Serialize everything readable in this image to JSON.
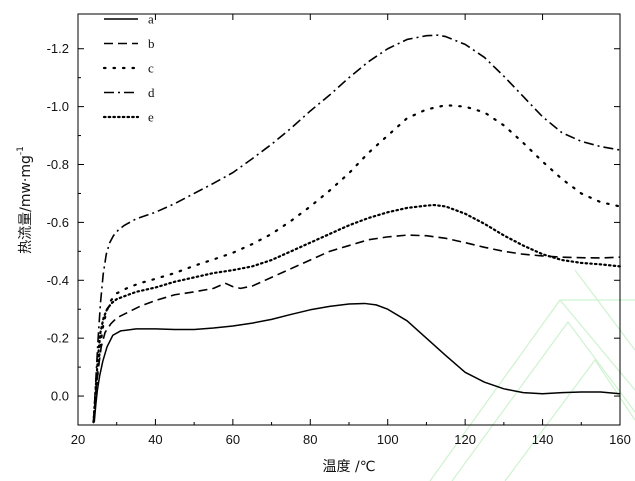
{
  "chart_data": {
    "type": "line",
    "xlabel": "温度 /℃",
    "ylabel": "热流量/mw·mg",
    "ylabel_superscript": "-1",
    "xlim": [
      20,
      160
    ],
    "ylim": [
      0.1,
      -1.32
    ],
    "x_ticks": [
      20,
      40,
      60,
      80,
      100,
      120,
      140,
      160
    ],
    "y_ticks": [
      0.0,
      -0.2,
      -0.4,
      -0.6,
      -0.8,
      -1.0,
      -1.2
    ],
    "y_tick_labels": [
      "0.0",
      "-0.2",
      "-0.4",
      "-0.6",
      "-0.8",
      "-1.0",
      "-1.2"
    ],
    "grid": false,
    "legend_position": "top-left",
    "series": [
      {
        "name": "a",
        "style": "solid",
        "x": [
          24.2,
          24.6,
          25.0,
          25.6,
          26.4,
          27.5,
          29.0,
          31,
          35,
          40,
          45,
          50,
          55,
          60,
          65,
          70,
          75,
          80,
          85,
          90,
          94,
          97,
          100,
          105,
          110,
          115,
          120,
          125,
          130,
          135,
          140,
          145,
          150,
          155,
          160
        ],
        "values": [
          0.09,
          0.03,
          -0.02,
          -0.07,
          -0.12,
          -0.17,
          -0.21,
          -0.225,
          -0.232,
          -0.232,
          -0.23,
          -0.23,
          -0.235,
          -0.242,
          -0.252,
          -0.265,
          -0.282,
          -0.298,
          -0.31,
          -0.318,
          -0.32,
          -0.315,
          -0.3,
          -0.26,
          -0.2,
          -0.14,
          -0.082,
          -0.048,
          -0.025,
          -0.012,
          -0.008,
          -0.012,
          -0.014,
          -0.014,
          -0.008
        ]
      },
      {
        "name": "b",
        "style": "dashed",
        "x": [
          24.0,
          24.3,
          24.7,
          25.3,
          26.0,
          27.0,
          28.5,
          30,
          33,
          36,
          40,
          45,
          50,
          55,
          58,
          60,
          62,
          65,
          70,
          75,
          80,
          85,
          90,
          95,
          100,
          105,
          110,
          115,
          120,
          125,
          130,
          135,
          140,
          145,
          150,
          155,
          160
        ],
        "values": [
          0.09,
          0.04,
          -0.03,
          -0.1,
          -0.17,
          -0.22,
          -0.25,
          -0.27,
          -0.29,
          -0.31,
          -0.33,
          -0.35,
          -0.36,
          -0.372,
          -0.39,
          -0.378,
          -0.372,
          -0.38,
          -0.41,
          -0.44,
          -0.47,
          -0.5,
          -0.52,
          -0.54,
          -0.55,
          -0.556,
          -0.554,
          -0.545,
          -0.53,
          -0.514,
          -0.5,
          -0.49,
          -0.484,
          -0.48,
          -0.478,
          -0.477,
          -0.48
        ]
      },
      {
        "name": "c",
        "style": "dotted",
        "x": [
          24.0,
          24.4,
          24.9,
          25.5,
          26.3,
          27.3,
          28.5,
          30,
          33,
          36,
          40,
          45,
          50,
          55,
          60,
          65,
          70,
          75,
          80,
          85,
          90,
          95,
          100,
          105,
          110,
          115,
          120,
          125,
          130,
          135,
          140,
          145,
          150,
          155,
          160
        ],
        "values": [
          0.09,
          0.03,
          -0.05,
          -0.14,
          -0.23,
          -0.29,
          -0.33,
          -0.355,
          -0.375,
          -0.39,
          -0.405,
          -0.425,
          -0.45,
          -0.472,
          -0.495,
          -0.525,
          -0.56,
          -0.605,
          -0.655,
          -0.71,
          -0.77,
          -0.84,
          -0.9,
          -0.96,
          -0.99,
          -1.005,
          -1.0,
          -0.98,
          -0.935,
          -0.875,
          -0.81,
          -0.75,
          -0.7,
          -0.67,
          -0.655
        ]
      },
      {
        "name": "d",
        "style": "dash-dot",
        "x": [
          24.0,
          24.3,
          24.7,
          25.2,
          25.8,
          26.5,
          27.3,
          28.2,
          29.2,
          30.5,
          32,
          35,
          40,
          45,
          50,
          55,
          60,
          65,
          70,
          75,
          80,
          85,
          90,
          95,
          100,
          105,
          110,
          113,
          115,
          120,
          125,
          130,
          135,
          140,
          145,
          150,
          155,
          160
        ],
        "values": [
          0.09,
          0.02,
          -0.08,
          -0.2,
          -0.32,
          -0.42,
          -0.49,
          -0.53,
          -0.555,
          -0.575,
          -0.59,
          -0.612,
          -0.635,
          -0.665,
          -0.7,
          -0.735,
          -0.772,
          -0.82,
          -0.87,
          -0.925,
          -0.985,
          -1.04,
          -1.1,
          -1.155,
          -1.2,
          -1.232,
          -1.245,
          -1.247,
          -1.242,
          -1.215,
          -1.17,
          -1.105,
          -1.035,
          -0.965,
          -0.91,
          -0.88,
          -0.862,
          -0.85
        ]
      },
      {
        "name": "e",
        "style": "dotted-dense",
        "x": [
          24.0,
          24.3,
          24.7,
          25.2,
          25.8,
          26.6,
          27.5,
          28.6,
          30,
          32,
          35,
          40,
          45,
          50,
          55,
          60,
          65,
          70,
          75,
          80,
          85,
          90,
          95,
          100,
          105,
          110,
          112,
          115,
          120,
          125,
          130,
          135,
          140,
          145,
          150,
          155,
          160
        ],
        "values": [
          0.09,
          0.03,
          -0.05,
          -0.14,
          -0.22,
          -0.27,
          -0.3,
          -0.32,
          -0.335,
          -0.345,
          -0.36,
          -0.375,
          -0.395,
          -0.41,
          -0.425,
          -0.435,
          -0.448,
          -0.47,
          -0.5,
          -0.53,
          -0.56,
          -0.59,
          -0.615,
          -0.635,
          -0.65,
          -0.658,
          -0.66,
          -0.655,
          -0.63,
          -0.595,
          -0.555,
          -0.52,
          -0.49,
          -0.47,
          -0.46,
          -0.455,
          -0.448
        ]
      }
    ]
  }
}
